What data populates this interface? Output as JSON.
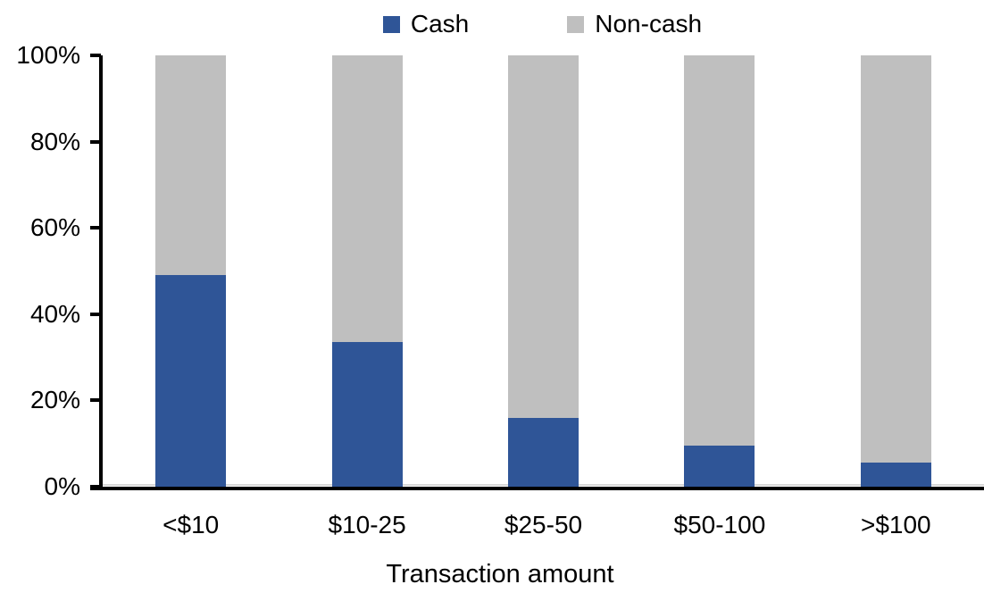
{
  "chart_data": {
    "type": "bar",
    "subtype": "stacked-100-percent",
    "title": "",
    "xlabel": "Transaction amount",
    "ylabel": "",
    "categories": [
      "<$10",
      "$10-25",
      "$25-50",
      "$50-100",
      ">$100"
    ],
    "series": [
      {
        "name": "Cash",
        "color": "#2F5597",
        "values": [
          49,
          33.5,
          16,
          9.5,
          5.5
        ]
      },
      {
        "name": "Non-cash",
        "color": "#BFBFBF",
        "values": [
          51,
          66.5,
          84,
          90.5,
          94.5
        ]
      }
    ],
    "ylim": [
      0,
      100
    ],
    "ytick_labels": [
      "0%",
      "20%",
      "40%",
      "60%",
      "80%",
      "100%"
    ],
    "grid": false,
    "legend_position": "top"
  },
  "colors": {
    "axis": "#000000",
    "zero_gridline": "#D9D9D9",
    "background": "#FFFFFF",
    "text": "#000000"
  }
}
